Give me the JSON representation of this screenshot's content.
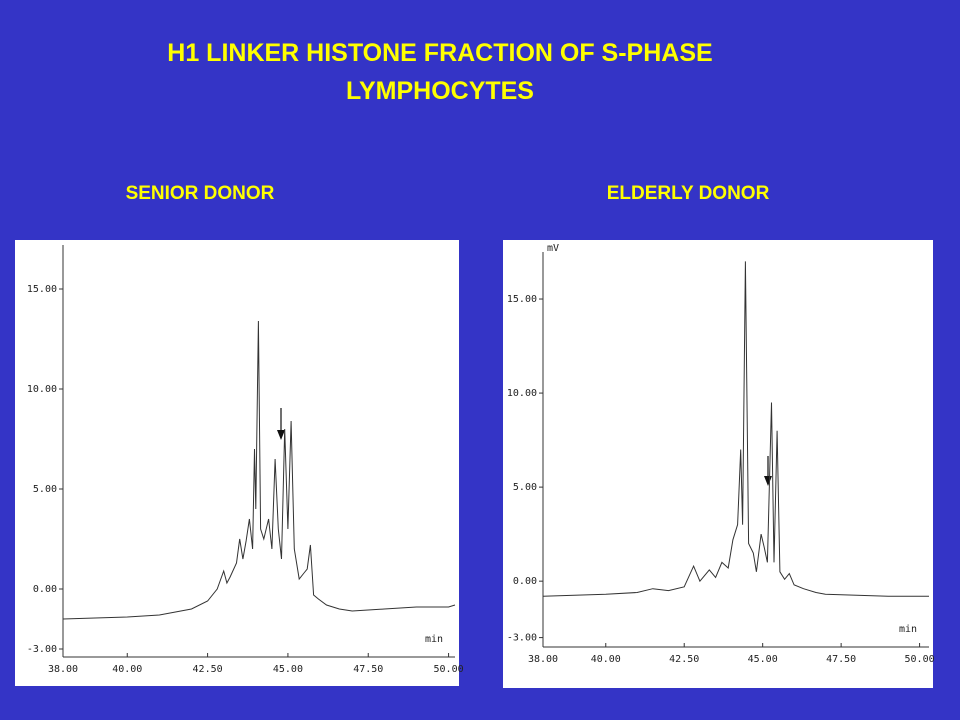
{
  "slide": {
    "title": "H1 LINKER HISTONE FRACTION OF S-PHASE LYMPHOCYTES"
  },
  "chart_data": [
    {
      "type": "line",
      "title": "SENIOR DONOR",
      "x_unit": "min",
      "color": "#333333",
      "xlim": [
        38,
        50.2
      ],
      "ylim": [
        -3.4,
        17.2
      ],
      "xticks": [
        {
          "value": 38,
          "label": "38.00"
        },
        {
          "value": 40,
          "label": "40.00"
        },
        {
          "value": 42.5,
          "label": "42.50"
        },
        {
          "value": 45,
          "label": "45.00"
        },
        {
          "value": 47.5,
          "label": "47.50"
        },
        {
          "value": 50,
          "label": "50.00"
        }
      ],
      "yticks": [
        {
          "value": -3,
          "label": "-3.00"
        },
        {
          "value": 0,
          "label": "0.00"
        },
        {
          "value": 5,
          "label": "5.00"
        },
        {
          "value": 10,
          "label": "10.00"
        },
        {
          "value": 15,
          "label": "15.00"
        }
      ],
      "x": [
        38,
        39,
        40,
        41,
        42,
        42.5,
        42.8,
        43.0,
        43.1,
        43.2,
        43.4,
        43.5,
        43.6,
        43.7,
        43.8,
        43.9,
        43.96,
        44.0,
        44.08,
        44.15,
        44.25,
        44.4,
        44.5,
        44.6,
        44.7,
        44.8,
        44.9,
        45.0,
        45.1,
        45.2,
        45.35,
        45.5,
        45.6,
        45.7,
        45.8,
        45.95,
        46.2,
        46.6,
        47,
        48,
        49,
        50,
        50.2
      ],
      "series": [
        {
          "name": "SENIOR DONOR",
          "values": [
            -1.5,
            -1.45,
            -1.4,
            -1.3,
            -1.0,
            -0.6,
            0.0,
            0.9,
            0.3,
            0.6,
            1.3,
            2.5,
            1.5,
            2.4,
            3.5,
            2.0,
            7.0,
            4.0,
            13.4,
            3.0,
            2.5,
            3.5,
            2.0,
            6.5,
            3.0,
            1.5,
            8.0,
            3.0,
            8.4,
            2.0,
            0.5,
            0.8,
            1.0,
            2.2,
            -0.3,
            -0.5,
            -0.8,
            -1.0,
            -1.1,
            -1.0,
            -0.9,
            -0.9,
            -0.8
          ]
        }
      ]
    },
    {
      "type": "line",
      "title": "ELDERLY DONOR",
      "x_unit": "min",
      "y_unit": "mV",
      "color": "#333333",
      "xlim": [
        38,
        50.3
      ],
      "ylim": [
        -3.5,
        17.5
      ],
      "xticks": [
        {
          "value": 38,
          "label": "38.00"
        },
        {
          "value": 40,
          "label": "40.00"
        },
        {
          "value": 42.5,
          "label": "42.50"
        },
        {
          "value": 45,
          "label": "45.00"
        },
        {
          "value": 47.5,
          "label": "47.50"
        },
        {
          "value": 50,
          "label": "50.00"
        }
      ],
      "yticks": [
        {
          "value": -3,
          "label": "-3.00"
        },
        {
          "value": 0,
          "label": "0.00"
        },
        {
          "value": 5,
          "label": "5.00"
        },
        {
          "value": 10,
          "label": "10.00"
        },
        {
          "value": 15,
          "label": "15.00"
        }
      ],
      "x": [
        38,
        39,
        40,
        41,
        41.5,
        42,
        42.5,
        42.8,
        43.0,
        43.3,
        43.5,
        43.7,
        43.9,
        44.05,
        44.2,
        44.3,
        44.36,
        44.45,
        44.55,
        44.7,
        44.8,
        44.95,
        45.05,
        45.15,
        45.28,
        45.36,
        45.46,
        45.55,
        45.7,
        45.85,
        46.0,
        46.3,
        46.7,
        47,
        48,
        49,
        50,
        50.3
      ],
      "series": [
        {
          "name": "ELDERLY DONOR",
          "values": [
            -0.8,
            -0.75,
            -0.7,
            -0.6,
            -0.4,
            -0.5,
            -0.3,
            0.8,
            0.0,
            0.6,
            0.2,
            1.0,
            0.7,
            2.2,
            3.0,
            7.0,
            3.0,
            17.0,
            2.0,
            1.5,
            0.5,
            2.5,
            1.8,
            1.0,
            9.5,
            1.0,
            8.0,
            0.5,
            0.1,
            0.4,
            -0.2,
            -0.4,
            -0.6,
            -0.7,
            -0.75,
            -0.8,
            -0.8,
            -0.8
          ]
        }
      ]
    }
  ]
}
